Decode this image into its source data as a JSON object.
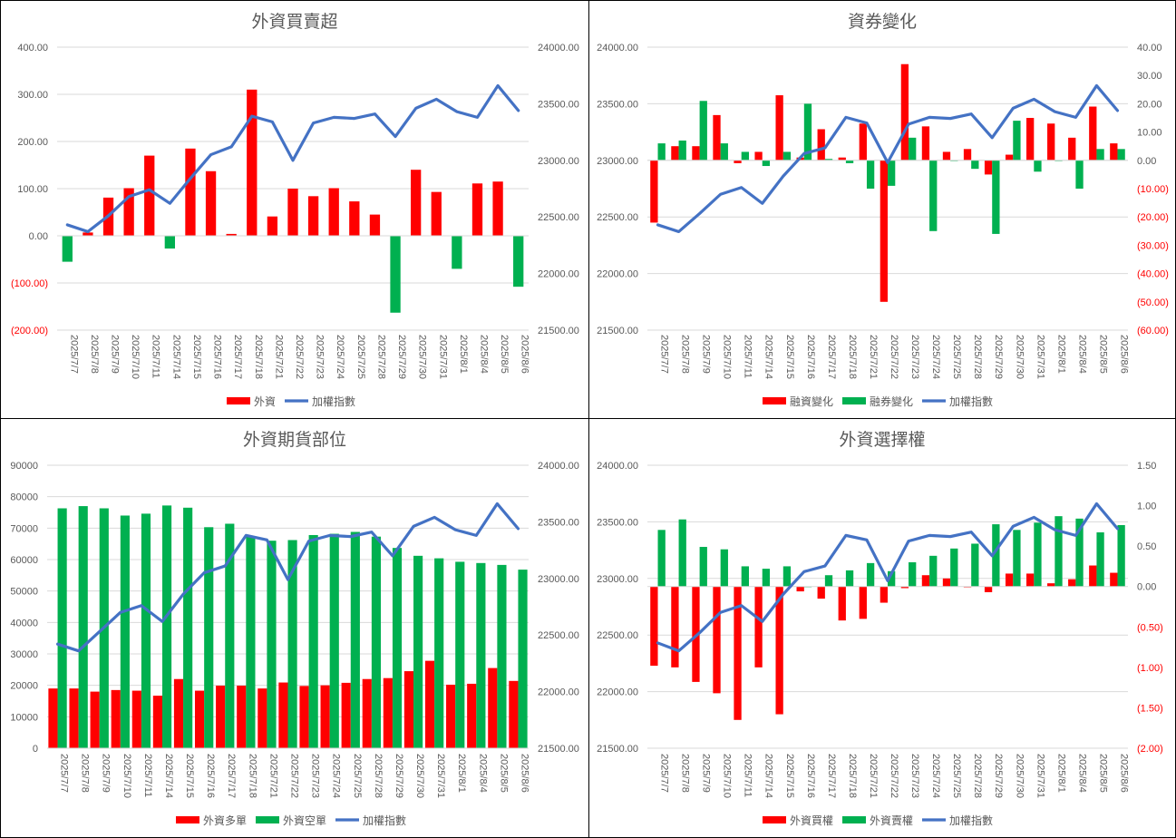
{
  "dates": [
    "2025/7/7",
    "2025/7/8",
    "2025/7/9",
    "2025/7/10",
    "2025/7/11",
    "2025/7/14",
    "2025/7/15",
    "2025/7/16",
    "2025/7/17",
    "2025/7/18",
    "2025/7/21",
    "2025/7/22",
    "2025/7/23",
    "2025/7/24",
    "2025/7/25",
    "2025/7/28",
    "2025/7/29",
    "2025/7/30",
    "2025/7/31",
    "2025/8/1",
    "2025/8/4",
    "2025/8/5",
    "2025/8/6"
  ],
  "colors": {
    "red": "#FF0000",
    "green": "#00B050",
    "blue": "#4472C4",
    "neg": "#FF0000"
  },
  "chart_data": [
    {
      "type": "bar",
      "title": "外資買賣超",
      "bar_series": [
        {
          "name": "外資",
          "color": "#FF0000",
          "neg_color": "#00B050",
          "values": [
            -55,
            7,
            81,
            101,
            170,
            -27,
            185,
            137,
            4,
            310,
            41,
            100,
            84,
            101,
            73,
            45,
            -163,
            140,
            93,
            -70,
            111,
            115,
            -108
          ]
        }
      ],
      "line": {
        "name": "加權指數",
        "values": [
          22430,
          22370,
          22510,
          22680,
          22740,
          22620,
          22840,
          23050,
          23120,
          23390,
          23340,
          23000,
          23330,
          23380,
          23370,
          23410,
          23210,
          23460,
          23540,
          23430,
          23380,
          23660,
          23440
        ]
      },
      "ylim_left": [
        -200,
        400
      ],
      "yticks_left": [
        -200,
        -100,
        0,
        100,
        200,
        300,
        400
      ],
      "ylim_right": [
        21500,
        24000
      ],
      "yticks_right": [
        21500,
        22000,
        22500,
        23000,
        23500,
        24000
      ],
      "tick_labels_left": [
        "(200.00)",
        "(100.00)",
        "0.00",
        "100.00",
        "200.00",
        "300.00",
        "400.00"
      ],
      "tick_labels_right": [
        "21500.00",
        "22000.00",
        "22500.00",
        "23000.00",
        "23500.00",
        "24000.00"
      ],
      "legend": [
        "外資",
        "加權指數"
      ]
    },
    {
      "type": "bar",
      "title": "資券變化",
      "bar_series": [
        {
          "name": "融資變化",
          "color": "#FF0000",
          "values": [
            -22,
            5,
            5,
            16,
            -1,
            3,
            23,
            1,
            11,
            1,
            13,
            -50,
            34,
            12,
            3,
            4,
            -5,
            2,
            15,
            13,
            8,
            19,
            6
          ]
        },
        {
          "name": "融券變化",
          "color": "#00B050",
          "values": [
            6,
            7,
            21,
            6,
            3,
            -2,
            3,
            20,
            0.5,
            -1,
            -10,
            -9,
            8,
            -25,
            0,
            -3,
            -26,
            14,
            -4,
            0,
            -10,
            4,
            4
          ]
        }
      ],
      "line": {
        "name": "加權指數",
        "values": [
          22430,
          22370,
          22530,
          22700,
          22760,
          22620,
          22860,
          23060,
          23110,
          23380,
          23330,
          22980,
          23320,
          23380,
          23370,
          23410,
          23200,
          23460,
          23540,
          23430,
          23380,
          23660,
          23440
        ]
      },
      "ylim_left": [
        21500,
        24000
      ],
      "yticks_left": [
        21500,
        22000,
        22500,
        23000,
        23500,
        24000
      ],
      "ylim_right": [
        -60,
        40
      ],
      "yticks_right": [
        -60,
        -50,
        -40,
        -30,
        -20,
        -10,
        0,
        10,
        20,
        30,
        40
      ],
      "tick_labels_left": [
        "21500.00",
        "22000.00",
        "22500.00",
        "23000.00",
        "23500.00",
        "24000.00"
      ],
      "tick_labels_right": [
        "(60.00)",
        "(50.00)",
        "(40.00)",
        "(30.00)",
        "(20.00)",
        "(10.00)",
        "0.00",
        "10.00",
        "20.00",
        "30.00",
        "40.00"
      ],
      "legend": [
        "融資變化",
        "融券變化",
        "加權指數"
      ]
    },
    {
      "type": "bar",
      "title": "外資期貨部位",
      "bar_series": [
        {
          "name": "外資多單",
          "color": "#FF0000",
          "values": [
            19000,
            19000,
            18000,
            18500,
            18300,
            16700,
            22000,
            18300,
            19900,
            19900,
            19000,
            20900,
            19800,
            20000,
            20800,
            22000,
            22300,
            24500,
            27800,
            20200,
            20500,
            25500,
            21400
          ]
        },
        {
          "name": "外資空單",
          "color": "#00B050",
          "values": [
            76300,
            77000,
            76300,
            74000,
            74600,
            77200,
            76500,
            70300,
            71400,
            67500,
            66000,
            66200,
            67800,
            68200,
            68800,
            67300,
            63700,
            61200,
            60400,
            59300,
            58900,
            58300,
            56800
          ]
        }
      ],
      "line": {
        "name": "加權指數",
        "values": [
          22420,
          22360,
          22530,
          22700,
          22760,
          22620,
          22860,
          23050,
          23110,
          23380,
          23340,
          22990,
          23330,
          23380,
          23370,
          23410,
          23200,
          23460,
          23540,
          23430,
          23380,
          23660,
          23440
        ]
      },
      "ylim_left": [
        0,
        90000
      ],
      "yticks_left": [
        0,
        10000,
        20000,
        30000,
        40000,
        50000,
        60000,
        70000,
        80000,
        90000
      ],
      "ylim_right": [
        21500,
        24000
      ],
      "yticks_right": [
        21500,
        22000,
        22500,
        23000,
        23500,
        24000
      ],
      "tick_labels_left": [
        "0",
        "10000",
        "20000",
        "30000",
        "40000",
        "50000",
        "60000",
        "70000",
        "80000",
        "90000"
      ],
      "tick_labels_right": [
        "21500.00",
        "22000.00",
        "22500.00",
        "23000.00",
        "23500.00",
        "24000.00"
      ],
      "legend": [
        "外資多單",
        "外資空單",
        "加權指數"
      ]
    },
    {
      "type": "bar",
      "title": "外資選擇權",
      "bar_series": [
        {
          "name": "外資買權",
          "color": "#FF0000",
          "values": [
            -0.98,
            -1.0,
            -1.18,
            -1.32,
            -1.65,
            -1.0,
            -1.58,
            -0.06,
            -0.15,
            -0.42,
            -0.4,
            -0.2,
            -0.02,
            0.14,
            0.1,
            -0.01,
            -0.07,
            0.16,
            0.16,
            0.04,
            0.09,
            0.26,
            0.17
          ]
        },
        {
          "name": "外資賣權",
          "color": "#00B050",
          "values": [
            0.7,
            0.83,
            0.49,
            0.46,
            0.25,
            0.22,
            0.25,
            0.0,
            0.14,
            0.2,
            0.29,
            0.19,
            0.3,
            0.38,
            0.47,
            0.53,
            0.77,
            0.7,
            0.79,
            0.87,
            0.84,
            0.67,
            0.76
          ]
        }
      ],
      "line": {
        "name": "加權指數",
        "values": [
          22430,
          22360,
          22520,
          22700,
          22760,
          22620,
          22860,
          23060,
          23110,
          23380,
          23340,
          22980,
          23330,
          23380,
          23370,
          23410,
          23200,
          23460,
          23540,
          23430,
          23380,
          23660,
          23440
        ]
      },
      "ylim_left": [
        21500,
        24000
      ],
      "yticks_left": [
        21500,
        22000,
        22500,
        23000,
        23500,
        24000
      ],
      "ylim_right": [
        -2.0,
        1.5
      ],
      "yticks_right": [
        -2.0,
        -1.5,
        -1.0,
        -0.5,
        0,
        0.5,
        1.0,
        1.5
      ],
      "tick_labels_left": [
        "21500.00",
        "22000.00",
        "22500.00",
        "23000.00",
        "23500.00",
        "24000.00"
      ],
      "tick_labels_right": [
        "(2.00)",
        "(1.50)",
        "(1.00)",
        "(0.50)",
        "0.00",
        "0.50",
        "1.00",
        "1.50"
      ],
      "legend": [
        "外資買權",
        "外資賣權",
        "加權指數"
      ]
    }
  ]
}
